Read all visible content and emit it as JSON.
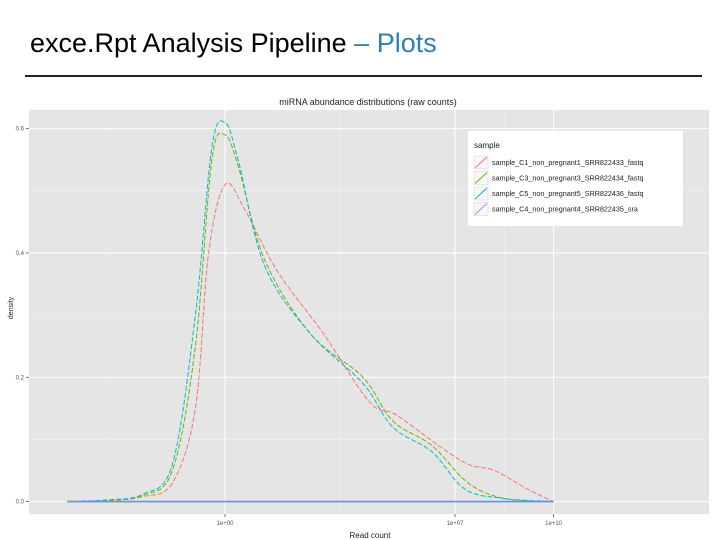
{
  "slide": {
    "title_main": "exce.Rpt Analysis Pipeline ",
    "title_dash": "–",
    "title_accent": " Plots"
  },
  "chart_data": {
    "type": "line",
    "title": "miRNA abundance distributions (raw counts)",
    "xlabel": "Read count",
    "ylabel": "density",
    "x_scale": "log10",
    "xlim": [
      1,
      1000000000
    ],
    "ylim": [
      -0.02,
      0.63
    ],
    "x_ticks": [
      {
        "value": 1,
        "label": "1e+00"
      },
      {
        "value": 10000000,
        "label": "1e+07"
      },
      {
        "value": 10000000000,
        "label": "1e+10"
      }
    ],
    "y_ticks": [
      {
        "value": 0.0,
        "label": "0.0"
      },
      {
        "value": 0.2,
        "label": "0.2"
      },
      {
        "value": 0.4,
        "label": "0.4"
      },
      {
        "value": 0.6,
        "label": "0.6"
      }
    ],
    "grid": true,
    "legend_title": "sample",
    "legend_position": "top-right",
    "colors": {
      "panel": "#e5e5e5",
      "grid_major": "#ffffff",
      "grid_minor": "#f2f2f2"
    },
    "series": [
      {
        "name": "sample_C1_non_pregnant1_SRR822433_fastq",
        "color": "#f8766d",
        "x_log10": [
          -4.8,
          -3.5,
          -2.5,
          -1.6,
          -0.9,
          -0.5,
          0.0,
          0.6,
          1.6,
          3.0,
          4.4,
          5.2,
          6.5,
          7.4,
          8.2,
          9.2,
          10.0
        ],
        "y": [
          0.0,
          0.002,
          0.008,
          0.03,
          0.15,
          0.4,
          0.51,
          0.47,
          0.37,
          0.27,
          0.16,
          0.14,
          0.09,
          0.06,
          0.05,
          0.02,
          0.0
        ]
      },
      {
        "name": "sample_C3_non_pregnant3_SRR822434_fastq",
        "color": "#7cae00",
        "x_log10": [
          -4.8,
          -3.5,
          -2.5,
          -1.6,
          -0.9,
          -0.4,
          0.0,
          0.4,
          1.2,
          2.6,
          4.2,
          5.1,
          6.3,
          7.4,
          8.5,
          10.0
        ],
        "y": [
          0.0,
          0.002,
          0.01,
          0.05,
          0.25,
          0.55,
          0.59,
          0.54,
          0.39,
          0.27,
          0.2,
          0.13,
          0.09,
          0.03,
          0.005,
          0.0
        ]
      },
      {
        "name": "sample_C5_non_pregnant5_SRR822436_fastq",
        "color": "#00bfc4",
        "x_log10": [
          -4.8,
          -3.5,
          -2.5,
          -1.6,
          -0.9,
          -0.4,
          0.0,
          0.4,
          1.2,
          2.6,
          4.2,
          5.1,
          6.3,
          7.3,
          8.5,
          10.0
        ],
        "y": [
          0.0,
          0.003,
          0.012,
          0.06,
          0.3,
          0.57,
          0.61,
          0.55,
          0.38,
          0.27,
          0.19,
          0.12,
          0.08,
          0.02,
          0.005,
          0.0
        ]
      },
      {
        "name": "sample_C4_non_pregnant4_SRR822435_sra",
        "color": "#c77cff",
        "x_log10": [
          -4.8,
          -3.5,
          -2.5,
          -1.6,
          -0.9,
          -0.4,
          0.0,
          0.4,
          1.2,
          2.6,
          4.2,
          5.1,
          6.3,
          7.3,
          8.5,
          10.0
        ],
        "y": [
          0.0,
          0.0,
          0.0,
          0.0,
          0.0,
          0.0,
          0.0,
          0.0,
          0.0,
          0.0,
          0.0,
          0.0,
          0.0,
          0.0,
          0.0,
          0.0
        ]
      }
    ]
  }
}
